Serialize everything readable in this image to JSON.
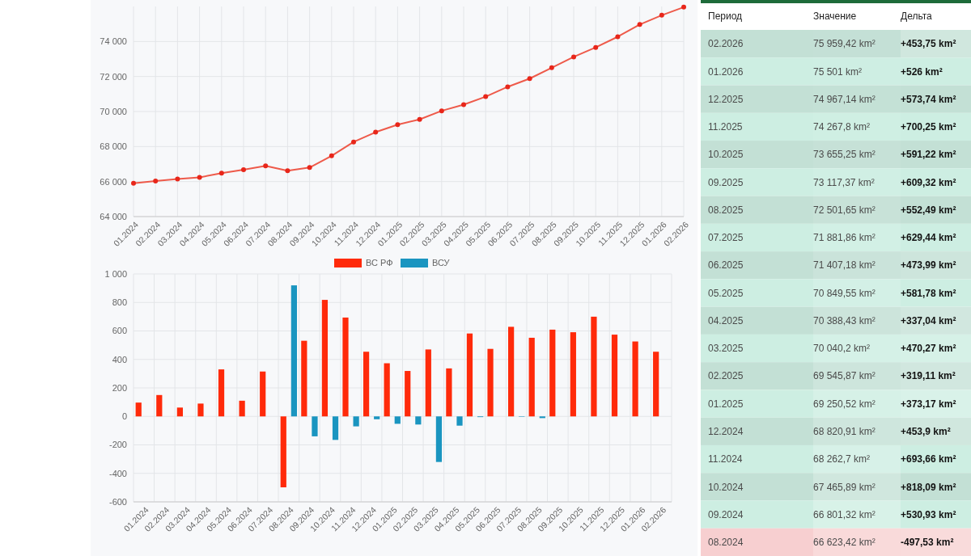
{
  "chart_data": [
    {
      "type": "line",
      "categories": [
        "01.2024",
        "02.2024",
        "03.2024",
        "04.2024",
        "05.2024",
        "06.2024",
        "07.2024",
        "08.2024",
        "09.2024",
        "10.2024",
        "11.2024",
        "12.2024",
        "01.2025",
        "02.2025",
        "03.2025",
        "04.2025",
        "05.2025",
        "06.2025",
        "07.2025",
        "08.2025",
        "09.2025",
        "10.2025",
        "11.2025",
        "12.2025",
        "01.2026",
        "02.2026"
      ],
      "series": [
        {
          "color": "#ee5a4a",
          "values": [
            65900,
            66030,
            66150,
            66240,
            66480,
            66680,
            66900,
            66620,
            66800,
            67470,
            68260,
            68820,
            69250,
            69550,
            70040,
            70390,
            70850,
            71410,
            71880,
            72500,
            73120,
            73660,
            74270,
            74970,
            75500,
            75960
          ]
        }
      ],
      "ylim": [
        64000,
        76000
      ],
      "yticks": [
        {
          "value": 64000,
          "label": "64 000"
        },
        {
          "value": 66000,
          "label": "66 000"
        },
        {
          "value": 68000,
          "label": "68 000"
        },
        {
          "value": 70000,
          "label": "70 000"
        },
        {
          "value": 72000,
          "label": "72 000"
        },
        {
          "value": 74000,
          "label": "74 000"
        }
      ],
      "grid": true,
      "marker": "circle",
      "line_style": "solid"
    },
    {
      "type": "bar",
      "categories": [
        "01.2024",
        "02.2024",
        "03.2024",
        "04.2024",
        "05.2024",
        "06.2024",
        "07.2024",
        "08.2024",
        "09.2024",
        "10.2024",
        "11.2024",
        "12.2024",
        "01.2025",
        "02.2025",
        "03.2025",
        "04.2025",
        "05.2025",
        "06.2025",
        "07.2025",
        "08.2025",
        "09.2025",
        "10.2025",
        "11.2025",
        "12.2025",
        "01.2026",
        "02.2026"
      ],
      "series": [
        {
          "name": "ВС РФ",
          "color": "#ff2a0a",
          "values": [
            97,
            150,
            62,
            90,
            330,
            110,
            315,
            -498,
            531,
            818,
            694,
            454,
            373,
            319,
            470,
            337,
            582,
            474,
            629,
            552,
            609,
            591,
            700,
            574,
            526,
            454
          ]
        },
        {
          "name": "ВСУ",
          "color": "#1a95c0",
          "values": [
            0,
            0,
            0,
            0,
            0,
            0,
            0,
            920,
            -140,
            -165,
            -70,
            -20,
            -52,
            -57,
            -320,
            -65,
            -5,
            0,
            -3,
            -12,
            0,
            0,
            0,
            0,
            0,
            0
          ]
        }
      ],
      "ylim": [
        -600,
        1000
      ],
      "yticks": [
        {
          "value": 1000,
          "label": "1 000"
        },
        800,
        600,
        400,
        200,
        0,
        -200,
        -400,
        -600
      ],
      "grid": true,
      "legend": "top"
    },
    {
      "type": "heatmap",
      "ylabel": "Период",
      "categories": [
        "Значение",
        "Дельта"
      ],
      "y_categories": [
        "02.2026",
        "01.2026",
        "12.2025",
        "11.2025",
        "10.2025",
        "09.2025",
        "08.2025",
        "07.2025",
        "06.2025",
        "05.2025",
        "04.2025",
        "03.2025",
        "02.2025",
        "01.2025",
        "12.2024",
        "11.2024",
        "10.2024",
        "09.2024",
        "08.2024"
      ],
      "cells": [
        [
          75959.42,
          453.75
        ],
        [
          75501,
          526
        ],
        [
          74967.14,
          573.74
        ],
        [
          74267.8,
          700.25
        ],
        [
          73655.25,
          591.22
        ],
        [
          73117.37,
          609.32
        ],
        [
          72501.65,
          552.49
        ],
        [
          71881.86,
          629.44
        ],
        [
          71407.18,
          473.99
        ],
        [
          70849.55,
          581.78
        ],
        [
          70388.43,
          337.04
        ],
        [
          70040.2,
          470.27
        ],
        [
          69545.87,
          319.11
        ],
        [
          69250.52,
          373.17
        ],
        [
          68820.91,
          453.9
        ],
        [
          68262.7,
          693.66
        ],
        [
          67465.89,
          818.09
        ],
        [
          66801.32,
          530.93
        ],
        [
          66623.42,
          -497.53
        ]
      ],
      "cell_labels": [
        [
          "75 959,42 km²",
          "+453,75 km²"
        ],
        [
          "75 501 km²",
          "+526 km²"
        ],
        [
          "74 967,14 km²",
          "+573,74 km²"
        ],
        [
          "74 267,8 km²",
          "+700,25 km²"
        ],
        [
          "73 655,25 km²",
          "+591,22 km²"
        ],
        [
          "73 117,37 km²",
          "+609,32 km²"
        ],
        [
          "72 501,65 km²",
          "+552,49 km²"
        ],
        [
          "71 881,86 km²",
          "+629,44 km²"
        ],
        [
          "71 407,18 km²",
          "+473,99 km²"
        ],
        [
          "70 849,55 km²",
          "+581,78 km²"
        ],
        [
          "70 388,43 km²",
          "+337,04 km²"
        ],
        [
          "70 040,2 km²",
          "+470,27 km²"
        ],
        [
          "69 545,87 km²",
          "+319,11 km²"
        ],
        [
          "69 250,52 km²",
          "+373,17 km²"
        ],
        [
          "68 820,91 km²",
          "+453,9 km²"
        ],
        [
          "68 262,7 km²",
          "+693,66 km²"
        ],
        [
          "67 465,89 km²",
          "+818,09 km²"
        ],
        [
          "66 801,32 km²",
          "+530,93 km²"
        ],
        [
          "66 623,42 km²",
          "-497,53 km²"
        ]
      ]
    }
  ]
}
